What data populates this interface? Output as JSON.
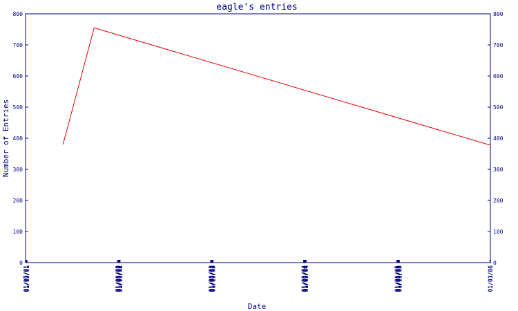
{
  "chart_data": {
    "type": "line",
    "title": "eagle's entries",
    "xlabel": "Date",
    "ylabel": "Number of Entries",
    "ylim": [
      0,
      800
    ],
    "yticks": [
      "0",
      "100",
      "200",
      "300",
      "400",
      "500",
      "600",
      "700",
      "800"
    ],
    "xticks": [
      "01/05/01",
      "01/07/01",
      "01/09/01",
      "01/11/01",
      "01/01/02",
      "01/03/02",
      "01/05/02",
      "01/07/02",
      "01/09/02",
      "01/11/02",
      "01/01/03",
      "01/03/03",
      "01/05/03",
      "01/07/03",
      "01/09/03",
      "01/11/03",
      "01/01/04",
      "01/03/04",
      "01/05/04",
      "01/07/04",
      "01/09/04",
      "01/11/04",
      "01/01/05",
      "01/03/05",
      "01/05/05",
      "01/07/05",
      "01/09/05",
      "01/11/05",
      "01/01/06",
      "01/03/06"
    ],
    "grid": false,
    "line_color": "#e00000",
    "axis_color": "#000080",
    "series": [
      {
        "x": [
          "2001-06-01",
          "2001-10-01",
          "2006-01-01"
        ],
        "y": [
          380,
          755,
          378
        ]
      }
    ]
  }
}
